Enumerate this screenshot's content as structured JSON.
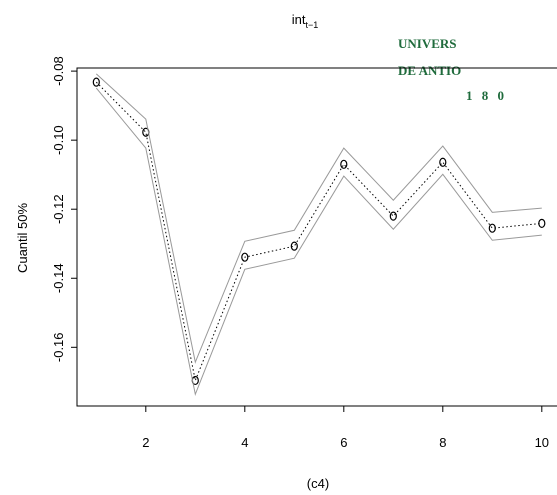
{
  "chart_data": {
    "type": "line",
    "title": "int",
    "title_subscript": "t−1",
    "ylabel": "Cuantil 50%",
    "xlabel": "(c4)",
    "logo": [
      "UNIVERS",
      "DE ANTIO",
      "1 8 0"
    ],
    "x": [
      1,
      2,
      3,
      4,
      5,
      6,
      7,
      8,
      9,
      10
    ],
    "series": [
      {
        "color": "#000000",
        "values": [
          -0.0832,
          -0.0977,
          -0.1696,
          -0.1339,
          -0.1307,
          -0.107,
          -0.122,
          -0.1064,
          -0.1255,
          -0.1241
        ]
      },
      {
        "color": "#999999",
        "values": [
          -0.0808,
          -0.0939,
          -0.1643,
          -0.1293,
          -0.1261,
          -0.1023,
          -0.1174,
          -0.1017,
          -0.1209,
          -0.1197
        ]
      },
      {
        "color": "#999999",
        "values": [
          -0.0849,
          -0.1023,
          -0.1736,
          -0.1374,
          -0.1342,
          -0.1104,
          -0.1258,
          -0.1099,
          -0.129,
          -0.1275
        ]
      }
    ],
    "xlim": [
      0.61,
      10.4
    ],
    "ylim": [
      -0.177,
      -0.0791
    ],
    "xticks": [
      2,
      4,
      6,
      8,
      10
    ],
    "yticks": [
      -0.08,
      {
        "value": -0.1,
        "label": "-0.10"
      },
      -0.12,
      -0.14,
      -0.16
    ]
  }
}
